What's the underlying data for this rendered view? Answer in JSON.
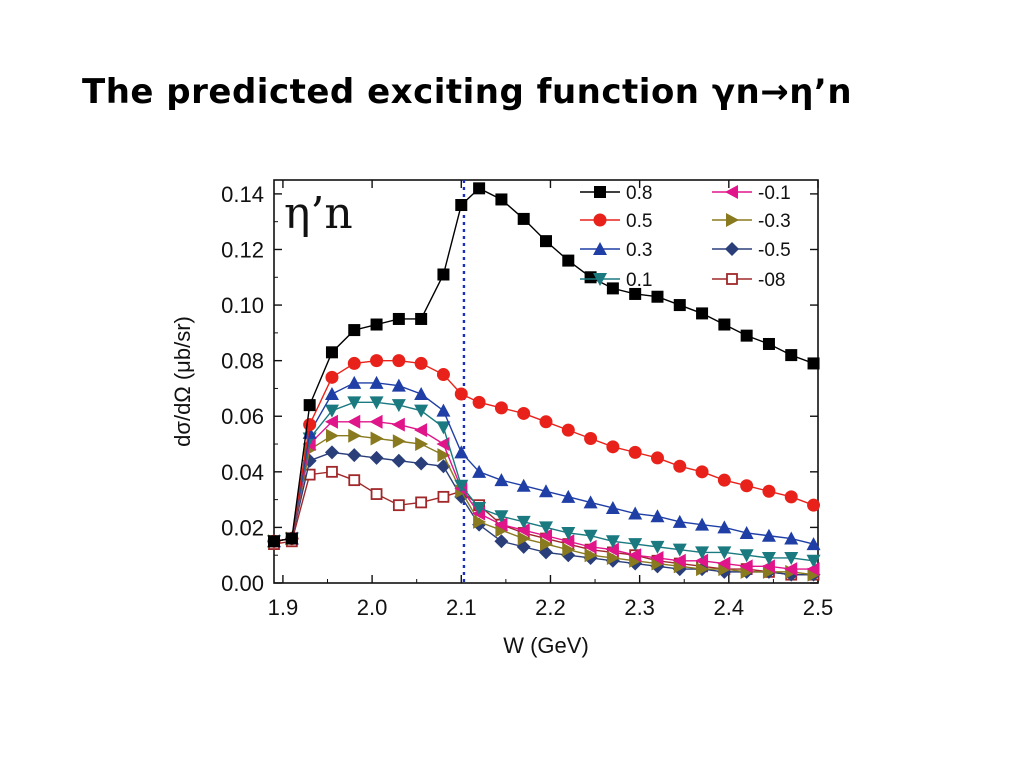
{
  "slide": {
    "title": "The predicted exciting function γn→η’n"
  },
  "chart_data": {
    "type": "line",
    "panel_label": "η’n",
    "xlabel": "W (GeV)",
    "ylabel": "dσ/dΩ  (μb/sr)",
    "xlim": [
      1.89,
      2.5
    ],
    "ylim": [
      0.0,
      0.145
    ],
    "x_ticks": [
      "1.9",
      "2.0",
      "2.1",
      "2.2",
      "2.3",
      "2.4",
      "2.5"
    ],
    "x_tick_values": [
      1.9,
      2.0,
      2.1,
      2.2,
      2.3,
      2.4,
      2.5
    ],
    "y_ticks": [
      "0.00",
      "0.02",
      "0.04",
      "0.06",
      "0.08",
      "0.10",
      "0.12",
      "0.14"
    ],
    "y_tick_values": [
      0.0,
      0.02,
      0.04,
      0.06,
      0.08,
      0.1,
      0.12,
      0.14
    ],
    "threshold_line_x": 2.103,
    "legend_position": "top-right",
    "x": [
      1.89,
      1.91,
      1.93,
      1.955,
      1.98,
      2.005,
      2.03,
      2.055,
      2.08,
      2.1,
      2.12,
      2.145,
      2.17,
      2.195,
      2.22,
      2.245,
      2.27,
      2.295,
      2.32,
      2.345,
      2.37,
      2.395,
      2.42,
      2.445,
      2.47,
      2.495
    ],
    "series": [
      {
        "name": "0.8",
        "color": "#000000",
        "marker": "square",
        "values": [
          0.015,
          0.016,
          0.064,
          0.083,
          0.091,
          0.093,
          0.095,
          0.095,
          0.111,
          0.136,
          0.142,
          0.138,
          0.131,
          0.123,
          0.116,
          0.11,
          0.106,
          0.104,
          0.103,
          0.1,
          0.097,
          0.093,
          0.089,
          0.086,
          0.082,
          0.079
        ]
      },
      {
        "name": "0.5",
        "color": "#e8221a",
        "marker": "circle",
        "values": [
          0.015,
          0.016,
          0.057,
          0.074,
          0.079,
          0.08,
          0.08,
          0.079,
          0.075,
          0.068,
          0.065,
          0.063,
          0.061,
          0.058,
          0.055,
          0.052,
          0.049,
          0.047,
          0.045,
          0.042,
          0.04,
          0.037,
          0.035,
          0.033,
          0.031,
          0.028
        ]
      },
      {
        "name": "0.3",
        "color": "#1f3fa6",
        "marker": "triangle-up",
        "values": [
          0.015,
          0.016,
          0.054,
          0.068,
          0.072,
          0.072,
          0.071,
          0.068,
          0.062,
          0.047,
          0.04,
          0.037,
          0.035,
          0.033,
          0.031,
          0.029,
          0.027,
          0.025,
          0.024,
          0.022,
          0.021,
          0.02,
          0.018,
          0.017,
          0.016,
          0.014
        ]
      },
      {
        "name": "0.1",
        "color": "#1a7a80",
        "marker": "triangle-down",
        "values": [
          0.015,
          0.016,
          0.052,
          0.062,
          0.065,
          0.065,
          0.064,
          0.062,
          0.056,
          0.035,
          0.027,
          0.024,
          0.022,
          0.02,
          0.018,
          0.017,
          0.015,
          0.014,
          0.013,
          0.012,
          0.011,
          0.011,
          0.01,
          0.009,
          0.009,
          0.008
        ]
      },
      {
        "name": "-0.1",
        "color": "#e0158a",
        "marker": "triangle-left",
        "values": [
          0.015,
          0.016,
          0.05,
          0.058,
          0.058,
          0.058,
          0.057,
          0.055,
          0.05,
          0.034,
          0.025,
          0.021,
          0.019,
          0.017,
          0.015,
          0.013,
          0.012,
          0.01,
          0.009,
          0.008,
          0.008,
          0.007,
          0.006,
          0.006,
          0.005,
          0.005
        ]
      },
      {
        "name": "-0.3",
        "color": "#8a7a1f",
        "marker": "triangle-right",
        "values": [
          0.015,
          0.016,
          0.048,
          0.053,
          0.053,
          0.052,
          0.051,
          0.05,
          0.046,
          0.033,
          0.022,
          0.019,
          0.016,
          0.014,
          0.012,
          0.01,
          0.009,
          0.008,
          0.007,
          0.006,
          0.005,
          0.005,
          0.004,
          0.004,
          0.004,
          0.003
        ]
      },
      {
        "name": "-0.5",
        "color": "#2a3f7a",
        "marker": "diamond",
        "values": [
          0.015,
          0.016,
          0.044,
          0.047,
          0.046,
          0.045,
          0.044,
          0.043,
          0.042,
          0.031,
          0.021,
          0.015,
          0.013,
          0.011,
          0.01,
          0.009,
          0.008,
          0.007,
          0.006,
          0.005,
          0.005,
          0.004,
          0.004,
          0.004,
          0.003,
          0.003
        ]
      },
      {
        "name": "-08",
        "color": "#a0282a",
        "marker": "open-square",
        "values": [
          0.014,
          0.015,
          0.039,
          0.04,
          0.037,
          0.032,
          0.028,
          0.029,
          0.031,
          0.033,
          0.028,
          0.021,
          0.018,
          0.016,
          0.014,
          0.012,
          0.011,
          0.01,
          0.008,
          0.007,
          0.006,
          0.005,
          0.005,
          0.004,
          0.003,
          0.003
        ]
      }
    ]
  }
}
